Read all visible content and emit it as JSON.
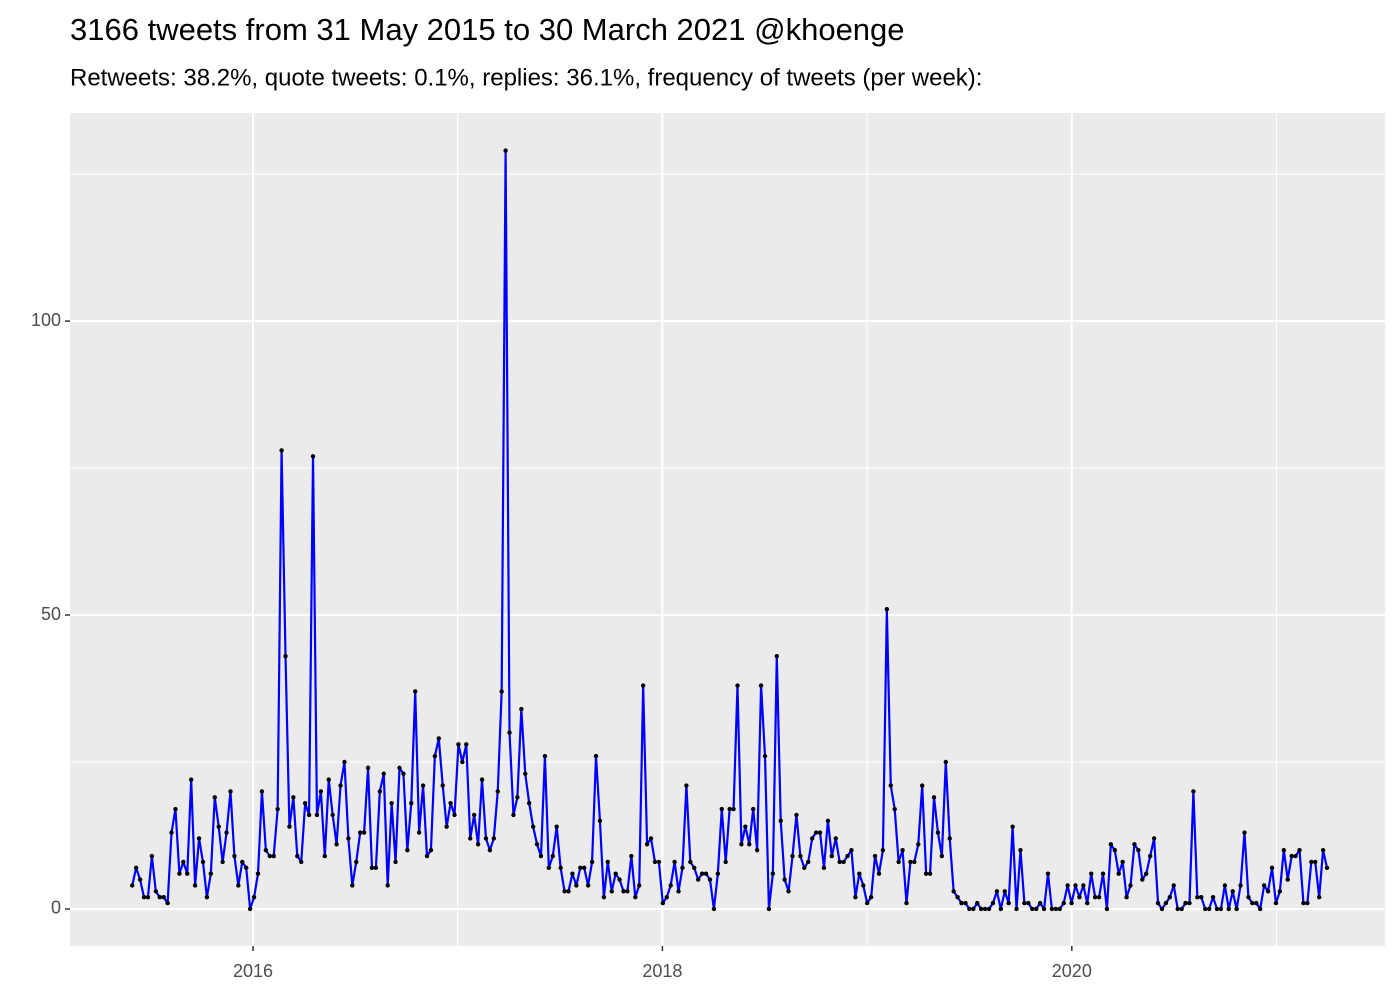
{
  "chart_data": {
    "type": "line",
    "title": "3166 tweets from 31 May 2015 to 30 March 2021 @khoenge",
    "subtitle": "Retweets: 38.2%, quote tweets: 0.1%, replies: 36.1%, frequency of tweets (per week):",
    "x": [
      2015.41,
      2015.4292,
      2015.4484,
      2015.4676,
      2015.4868,
      2015.506,
      2015.5252,
      2015.5444,
      2015.5636,
      2015.5828,
      2015.602,
      2015.6212,
      2015.6404,
      2015.6596,
      2015.6788,
      2015.698,
      2015.7172,
      2015.7364,
      2015.7556,
      2015.7748,
      2015.794,
      2015.8132,
      2015.8324,
      2015.8516,
      2015.8708,
      2015.89,
      2015.9092,
      2015.9284,
      2015.9476,
      2015.9668,
      2015.986,
      2016.0052,
      2016.0244,
      2016.0436,
      2016.0628,
      2016.082,
      2016.1012,
      2016.1204,
      2016.1396,
      2016.1588,
      2016.178,
      2016.1972,
      2016.2164,
      2016.2356,
      2016.2548,
      2016.274,
      2016.2932,
      2016.3124,
      2016.3316,
      2016.3508,
      2016.37,
      2016.3892,
      2016.4084,
      2016.4276,
      2016.4468,
      2016.466,
      2016.4852,
      2016.5044,
      2016.5236,
      2016.5428,
      2016.562,
      2016.5812,
      2016.6004,
      2016.6196,
      2016.6388,
      2016.658,
      2016.6772,
      2016.6964,
      2016.7156,
      2016.7348,
      2016.754,
      2016.7732,
      2016.7924,
      2016.8116,
      2016.8308,
      2016.85,
      2016.8692,
      2016.8884,
      2016.9076,
      2016.9268,
      2016.946,
      2016.9652,
      2016.9844,
      2017.0036,
      2017.0228,
      2017.042,
      2017.0612,
      2017.0804,
      2017.0996,
      2017.1188,
      2017.138,
      2017.1572,
      2017.1764,
      2017.1956,
      2017.2148,
      2017.234,
      2017.2532,
      2017.2724,
      2017.2916,
      2017.3108,
      2017.33,
      2017.3492,
      2017.3684,
      2017.3876,
      2017.4068,
      2017.426,
      2017.4452,
      2017.4644,
      2017.4836,
      2017.5028,
      2017.522,
      2017.5412,
      2017.5604,
      2017.5796,
      2017.5988,
      2017.618,
      2017.6372,
      2017.6564,
      2017.6756,
      2017.6948,
      2017.714,
      2017.7332,
      2017.7524,
      2017.7716,
      2017.7908,
      2017.81,
      2017.8292,
      2017.8484,
      2017.8676,
      2017.8868,
      2017.906,
      2017.9252,
      2017.9444,
      2017.9636,
      2017.9828,
      2018.002,
      2018.0212,
      2018.0404,
      2018.0596,
      2018.0788,
      2018.098,
      2018.1172,
      2018.1364,
      2018.1556,
      2018.1748,
      2018.194,
      2018.2132,
      2018.2324,
      2018.2516,
      2018.2708,
      2018.29,
      2018.3092,
      2018.3284,
      2018.3476,
      2018.3668,
      2018.386,
      2018.4052,
      2018.4244,
      2018.4436,
      2018.4628,
      2018.482,
      2018.5012,
      2018.5204,
      2018.5396,
      2018.5588,
      2018.578,
      2018.5972,
      2018.6164,
      2018.6356,
      2018.6548,
      2018.674,
      2018.6932,
      2018.7124,
      2018.7316,
      2018.7508,
      2018.77,
      2018.7892,
      2018.8084,
      2018.8276,
      2018.8468,
      2018.866,
      2018.8852,
      2018.9044,
      2018.9236,
      2018.9428,
      2018.962,
      2018.9812,
      2019.0004,
      2019.0196,
      2019.0388,
      2019.058,
      2019.0772,
      2019.0964,
      2019.1156,
      2019.1348,
      2019.154,
      2019.1732,
      2019.1924,
      2019.2116,
      2019.2308,
      2019.25,
      2019.2692,
      2019.2884,
      2019.3076,
      2019.3268,
      2019.346,
      2019.3652,
      2019.3844,
      2019.4036,
      2019.4228,
      2019.442,
      2019.4612,
      2019.4804,
      2019.4996,
      2019.5188,
      2019.538,
      2019.5572,
      2019.5764,
      2019.5956,
      2019.6148,
      2019.634,
      2019.6532,
      2019.6724,
      2019.6916,
      2019.7108,
      2019.73,
      2019.7492,
      2019.7684,
      2019.7876,
      2019.8068,
      2019.826,
      2019.8452,
      2019.8644,
      2019.8836,
      2019.9028,
      2019.922,
      2019.9412,
      2019.9604,
      2019.9796,
      2019.9988,
      2020.018,
      2020.0372,
      2020.0564,
      2020.0756,
      2020.0948,
      2020.114,
      2020.1332,
      2020.1524,
      2020.1716,
      2020.1908,
      2020.21,
      2020.2292,
      2020.2484,
      2020.2676,
      2020.2868,
      2020.306,
      2020.3252,
      2020.3444,
      2020.3636,
      2020.3828,
      2020.402,
      2020.4212,
      2020.4404,
      2020.4596,
      2020.4788,
      2020.498,
      2020.5172,
      2020.5364,
      2020.5556,
      2020.5748,
      2020.594,
      2020.6132,
      2020.6324,
      2020.6516,
      2020.6708,
      2020.69,
      2020.7092,
      2020.7284,
      2020.7476,
      2020.7668,
      2020.786,
      2020.8052,
      2020.8244,
      2020.8436,
      2020.8628,
      2020.882,
      2020.9012,
      2020.9204,
      2020.9396,
      2020.9588,
      2020.978,
      2020.9972,
      2021.0164,
      2021.0356,
      2021.0548,
      2021.074,
      2021.0932,
      2021.1124,
      2021.1316,
      2021.1508,
      2021.17,
      2021.1892,
      2021.2084,
      2021.2276,
      2021.2468
    ],
    "series": [
      {
        "color": "#0000ff",
        "values": [
          4,
          7,
          5,
          2,
          2,
          9,
          3,
          2,
          2,
          1,
          13,
          17,
          6,
          8,
          6,
          22,
          4,
          12,
          8,
          2,
          6,
          19,
          14,
          8,
          13,
          20,
          9,
          4,
          8,
          7,
          0,
          2,
          6,
          20,
          10,
          9,
          9,
          17,
          78,
          43,
          14,
          19,
          9,
          8,
          18,
          16,
          77,
          16,
          20,
          9,
          22,
          16,
          11,
          21,
          25,
          12,
          4,
          8,
          13,
          13,
          24,
          7,
          7,
          20,
          23,
          4,
          18,
          8,
          24,
          23,
          10,
          18,
          37,
          13,
          21,
          9,
          10,
          26,
          29,
          21,
          14,
          18,
          16,
          28,
          25,
          28,
          12,
          16,
          11,
          22,
          12,
          10,
          12,
          20,
          37,
          129,
          30,
          16,
          19,
          34,
          23,
          18,
          14,
          11,
          9,
          26,
          7,
          9,
          14,
          7,
          3,
          3,
          6,
          4,
          7,
          7,
          4,
          8,
          26,
          15,
          2,
          8,
          3,
          6,
          5,
          3,
          3,
          9,
          2,
          4,
          38,
          11,
          12,
          8,
          8,
          1,
          2,
          4,
          8,
          3,
          7,
          21,
          8,
          7,
          5,
          6,
          6,
          5,
          0,
          6,
          17,
          8,
          17,
          17,
          38,
          11,
          14,
          11,
          17,
          10,
          38,
          26,
          0,
          6,
          43,
          15,
          5,
          3,
          9,
          16,
          9,
          7,
          8,
          12,
          13,
          13,
          7,
          15,
          9,
          12,
          8,
          8,
          9,
          10,
          2,
          6,
          4,
          1,
          2,
          9,
          6,
          10,
          51,
          21,
          17,
          8,
          10,
          1,
          8,
          8,
          11,
          21,
          6,
          6,
          19,
          13,
          9,
          25,
          12,
          3,
          2,
          1,
          1,
          0,
          0,
          1,
          0,
          0,
          0,
          1,
          3,
          0,
          3,
          1,
          14,
          0,
          10,
          1,
          1,
          0,
          0,
          1,
          0,
          6,
          0,
          0,
          0,
          1,
          4,
          1,
          4,
          2,
          4,
          1,
          6,
          2,
          2,
          6,
          0,
          11,
          10,
          6,
          8,
          2,
          4,
          11,
          10,
          5,
          6,
          9,
          12,
          1,
          0,
          1,
          2,
          4,
          0,
          0,
          1,
          1,
          20,
          2,
          2,
          0,
          0,
          2,
          0,
          0,
          4,
          0,
          3,
          0,
          4,
          13,
          2,
          1,
          1,
          0,
          4,
          3,
          7,
          1,
          3,
          10,
          5,
          9,
          9,
          10,
          1,
          1,
          8,
          8,
          2,
          10,
          7
        ]
      }
    ],
    "point_color": "#000000",
    "xlim": [
      2015.106,
      2021.53
    ],
    "xticks": [
      2016,
      2018,
      2020
    ],
    "ylim": [
      -6.3,
      135.4
    ],
    "yticks": [
      0,
      50,
      100
    ],
    "grid": true
  }
}
